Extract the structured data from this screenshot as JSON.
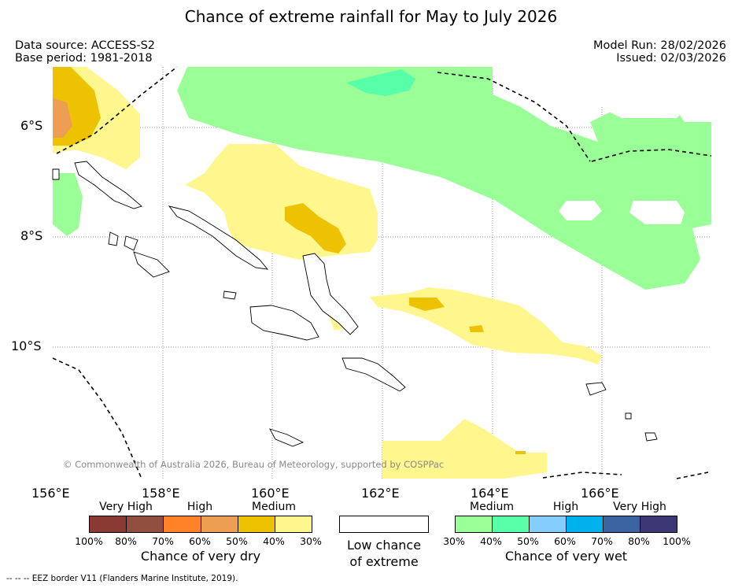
{
  "title": "Chance of extreme rainfall for May to July 2026",
  "data_source": "Data source: ACCESS-S2",
  "base_period": "Base period: 1981-2018",
  "model_run": "Model Run: 28/02/2026",
  "issued": "Issued: 02/03/2026",
  "latitude_labels": [
    "6°S",
    "8°S",
    "10°S"
  ],
  "longitude_labels": [
    "156°E",
    "158°E",
    "160°E",
    "162°E",
    "164°E",
    "166°E"
  ],
  "copyright": "© Commonwealth of Australia 2026, Bureau of Meteorology, supported by COSPPac",
  "footnote": "--  --  -- EEZ border V11 (Flanders Marine Institute, 2019).",
  "legend": {
    "dry": {
      "categories": [
        "Very High",
        "High",
        "Medium"
      ],
      "colors": [
        "#8b3a33",
        "#91503f",
        "#ff8228",
        "#ed9e52",
        "#edc200",
        "#fff68e"
      ],
      "ticks": [
        "100%",
        "80%",
        "70%",
        "60%",
        "50%",
        "40%",
        "30%"
      ],
      "caption": "Chance of very dry"
    },
    "neutral": {
      "color": "#ffffff",
      "caption_line1": "Low chance",
      "caption_line2": "of extreme"
    },
    "wet": {
      "categories": [
        "Medium",
        "High",
        "Very High"
      ],
      "colors": [
        "#9bff98",
        "#57ffa9",
        "#84cefe",
        "#00b2ec",
        "#3b64a0",
        "#3d3875"
      ],
      "ticks": [
        "30%",
        "40%",
        "50%",
        "60%",
        "70%",
        "80%",
        "100%"
      ],
      "caption": "Chance of very wet"
    }
  }
}
